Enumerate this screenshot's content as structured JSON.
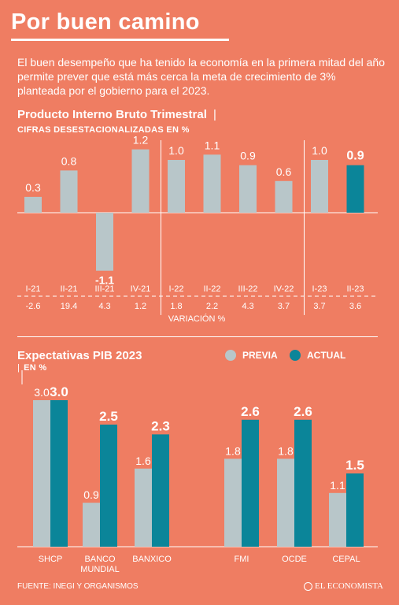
{
  "title": "Por buen camino",
  "intro": "El buen desempeño que ha tenido la economía en la primera mitad del año permite prever que está más cerca la meta de crecimiento de 3% planteada por el gobierno para el 2023.",
  "source": "FUENTE: INEGI Y ORGANISMOS",
  "logo": "EL ECONOMISTA",
  "colors": {
    "background": "#ef7d62",
    "previa": "#b8c6c9",
    "actual": "#0b8599",
    "white": "#ffffff"
  },
  "chart_data": [
    {
      "type": "bar",
      "title": "Producto Interno Bruto Trimestral",
      "subtitle": "CIFRAS DESESTACIONALIZADAS EN %",
      "categories": [
        "I-21",
        "II-21",
        "III-21",
        "IV-21",
        "I-22",
        "II-22",
        "III-22",
        "IV-22",
        "I-23",
        "II-23"
      ],
      "values": [
        0.3,
        0.8,
        -1.1,
        1.2,
        1.0,
        1.1,
        0.9,
        0.6,
        1.0,
        0.9
      ],
      "value_labels": [
        "0.3",
        "0.8",
        "-1.1",
        "1.2",
        "1.0",
        "1.1",
        "0.9",
        "0.6",
        "1.0",
        "0.9"
      ],
      "variacion": [
        "-2.6",
        "19.4",
        "4.3",
        "1.2",
        "1.8",
        "2.2",
        "4.3",
        "3.7",
        "3.7",
        "3.6"
      ],
      "variacion_label": "VARIACIÓN %",
      "highlight_index": 9,
      "ylim": [
        -1.3,
        1.5
      ]
    },
    {
      "type": "bar",
      "title": "Expectativas PIB 2023",
      "subtitle": "EN %",
      "categories": [
        "SHCP",
        "BANCO MUNDIAL",
        "BANXICO",
        "FMI",
        "OCDE",
        "CEPAL"
      ],
      "category_lines": [
        [
          "SHCP"
        ],
        [
          "BANCO",
          "MUNDIAL"
        ],
        [
          "BANXICO"
        ],
        [
          "FMI"
        ],
        [
          "OCDE"
        ],
        [
          "CEPAL"
        ]
      ],
      "series": [
        {
          "name": "PREVIA",
          "values": [
            3.0,
            0.9,
            1.6,
            1.8,
            1.8,
            1.1
          ],
          "labels": [
            "3.0",
            "0.9",
            "1.6",
            "1.8",
            "1.8",
            "1.1"
          ]
        },
        {
          "name": "ACTUAL",
          "values": [
            3.0,
            2.5,
            2.3,
            2.6,
            2.6,
            1.5
          ],
          "labels": [
            "3.0",
            "2.5",
            "2.3",
            "2.6",
            "2.6",
            "1.5"
          ]
        }
      ],
      "ylim": [
        0,
        3.2
      ]
    }
  ]
}
